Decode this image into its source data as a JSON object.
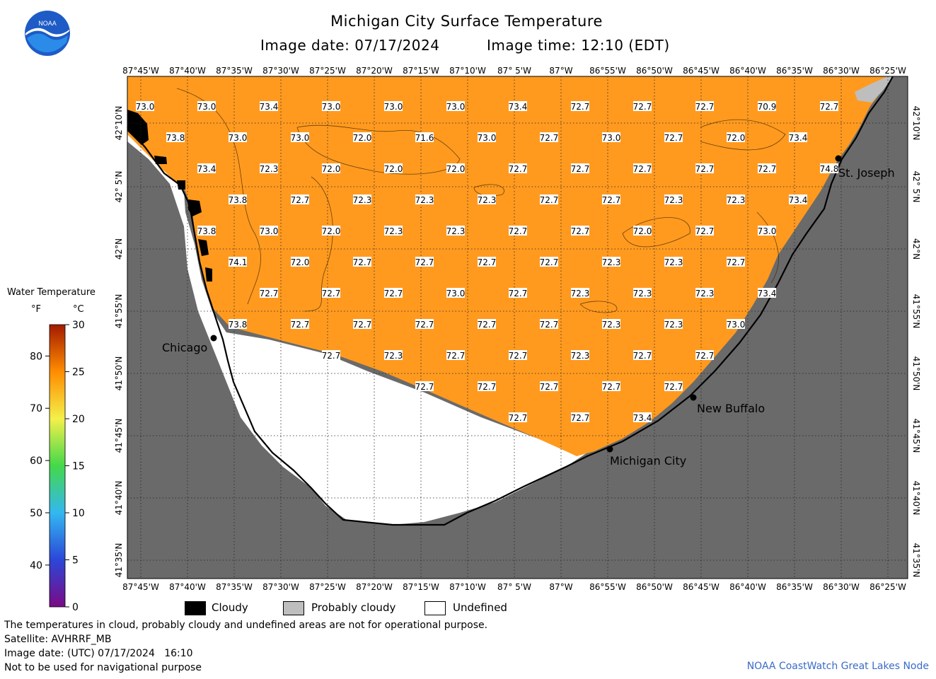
{
  "logo": {
    "text": "NOAA"
  },
  "title": "Michigan City Surface Temperature",
  "image_date_line": "Image date: 07/17/2024",
  "image_time_line": "Image time: 12:10 (EDT)",
  "lon_labels": [
    "87°45'W",
    "87°40'W",
    "87°35'W",
    "87°30'W",
    "87°25'W",
    "87°20'W",
    "87°15'W",
    "87°10'W",
    "87° 5'W",
    "87°W",
    "86°55'W",
    "86°50'W",
    "86°45'W",
    "86°40'W",
    "86°35'W",
    "86°30'W",
    "86°25'W"
  ],
  "lat_labels": [
    "42°10'N",
    "42° 5'N",
    "42°N",
    "41°55'N",
    "41°50'N",
    "41°45'N",
    "41°40'N",
    "41°35'N"
  ],
  "temperatures": [
    [
      "73.0",
      "73.0",
      "73.4",
      "73.0",
      "73.0",
      "73.0",
      "73.4",
      "72.7",
      "72.7",
      "72.7",
      "70.9",
      "72.7"
    ],
    [
      "73.8",
      "73.0",
      "73.0",
      "72.0",
      "71.6",
      "73.0",
      "72.7",
      "73.0",
      "72.7",
      "72.0",
      "73.4"
    ],
    [
      "73.4",
      "72.3",
      "72.0",
      "72.0",
      "72.0",
      "72.7",
      "72.7",
      "72.7",
      "72.7",
      "72.7",
      "74.8"
    ],
    [
      "73.8",
      "72.7",
      "72.3",
      "72.3",
      "72.3",
      "72.7",
      "72.7",
      "72.3",
      "72.3",
      "73.4"
    ],
    [
      "73.8",
      "73.0",
      "72.0",
      "72.3",
      "72.3",
      "72.7",
      "72.7",
      "72.0",
      "72.7",
      "73.0"
    ],
    [
      "74.1",
      "72.0",
      "72.7",
      "72.7",
      "72.7",
      "72.7",
      "72.3",
      "72.3",
      "72.7"
    ],
    [
      "72.7",
      "72.7",
      "72.7",
      "73.0",
      "72.7",
      "72.3",
      "72.3",
      "72.3",
      "73.4"
    ],
    [
      "73.8",
      "72.7",
      "72.7",
      "72.7",
      "72.7",
      "72.7",
      "72.3",
      "72.3",
      "73.0"
    ],
    [
      "72.7",
      "72.3",
      "72.7",
      "72.7",
      "72.3",
      "72.7",
      "72.7"
    ],
    [
      "72.7",
      "72.7",
      "72.7",
      "72.7",
      "72.7"
    ],
    [
      "72.7",
      "72.7",
      "73.4"
    ]
  ],
  "cities": {
    "chicago": "Chicago",
    "michigan_city": "Michigan City",
    "new_buffalo": "New Buffalo",
    "st_joseph": "St. Joseph"
  },
  "legend": {
    "title": "Water Temperature",
    "f_unit": "°F",
    "c_unit": "°C",
    "f_ticks": [
      "80",
      "70",
      "60",
      "50",
      "40"
    ],
    "c_ticks": [
      "30",
      "25",
      "20",
      "15",
      "10",
      "5",
      "0"
    ],
    "f_values": [
      80,
      70,
      60,
      50,
      40
    ],
    "c_values": [
      30,
      25,
      20,
      15,
      10,
      5,
      0
    ],
    "range_c": [
      0,
      30
    ],
    "colors": [
      "#7b0a85",
      "#2b47d8",
      "#33b8f0",
      "#44d84a",
      "#f4f04a",
      "#ff8c00",
      "#a31a00"
    ]
  },
  "key": {
    "cloudy": "Cloudy",
    "probably_cloudy": "Probably cloudy",
    "undefined": "Undefined",
    "cloudy_color": "#000000",
    "probably_cloudy_color": "#bebebe",
    "undefined_color": "#ffffff"
  },
  "colors": {
    "water": "#ff9a1f",
    "land": "#6a6a6a"
  },
  "footer": {
    "note": "The temperatures in cloud, probably cloudy and undefined areas are not for operational purpose.",
    "satellite": "Satellite: AVHRRF_MB",
    "utc_date": "Image date: (UTC) 07/17/2024   16:10",
    "nav": "Not to be used for navigational purpose",
    "credit": "NOAA CoastWatch Great Lakes Node"
  }
}
